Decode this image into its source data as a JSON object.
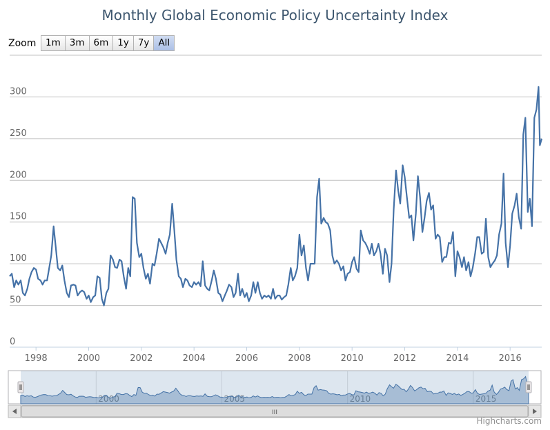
{
  "chart_data": {
    "type": "line",
    "title": "Monthly Global Economic Policy Uncertainty Index",
    "ylim": [
      0,
      350
    ],
    "yticks": [
      0,
      50,
      100,
      150,
      200,
      250,
      300
    ],
    "xlim": [
      1997.0,
      2017.2
    ],
    "xticks": [
      1998,
      2000,
      2002,
      2004,
      2006,
      2008,
      2010,
      2012,
      2014,
      2016
    ],
    "navigator_ticks": [
      2000,
      2005,
      2010,
      2015
    ],
    "grid": true,
    "legend": "none",
    "line_color": "#4572a7",
    "series": [
      {
        "points": [
          [
            1997.0,
            85
          ],
          [
            1997.08,
            88
          ],
          [
            1997.17,
            72
          ],
          [
            1997.25,
            80
          ],
          [
            1997.33,
            75
          ],
          [
            1997.42,
            80
          ],
          [
            1997.5,
            65
          ],
          [
            1997.58,
            62
          ],
          [
            1997.67,
            70
          ],
          [
            1997.75,
            82
          ],
          [
            1997.83,
            90
          ],
          [
            1997.92,
            95
          ],
          [
            1998.0,
            93
          ],
          [
            1998.08,
            82
          ],
          [
            1998.17,
            80
          ],
          [
            1998.25,
            75
          ],
          [
            1998.33,
            80
          ],
          [
            1998.42,
            80
          ],
          [
            1998.5,
            95
          ],
          [
            1998.58,
            110
          ],
          [
            1998.67,
            145
          ],
          [
            1998.75,
            120
          ],
          [
            1998.83,
            95
          ],
          [
            1998.92,
            92
          ],
          [
            1999.0,
            98
          ],
          [
            1999.08,
            80
          ],
          [
            1999.17,
            65
          ],
          [
            1999.25,
            60
          ],
          [
            1999.33,
            74
          ],
          [
            1999.42,
            75
          ],
          [
            1999.5,
            74
          ],
          [
            1999.58,
            62
          ],
          [
            1999.67,
            66
          ],
          [
            1999.75,
            68
          ],
          [
            1999.83,
            66
          ],
          [
            1999.92,
            58
          ],
          [
            2000.0,
            62
          ],
          [
            2000.08,
            54
          ],
          [
            2000.17,
            60
          ],
          [
            2000.25,
            62
          ],
          [
            2000.33,
            85
          ],
          [
            2000.42,
            83
          ],
          [
            2000.5,
            58
          ],
          [
            2000.58,
            50
          ],
          [
            2000.67,
            65
          ],
          [
            2000.75,
            70
          ],
          [
            2000.83,
            110
          ],
          [
            2000.92,
            105
          ],
          [
            2001.0,
            96
          ],
          [
            2001.08,
            95
          ],
          [
            2001.17,
            105
          ],
          [
            2001.25,
            103
          ],
          [
            2001.33,
            85
          ],
          [
            2001.42,
            70
          ],
          [
            2001.5,
            95
          ],
          [
            2001.58,
            85
          ],
          [
            2001.67,
            180
          ],
          [
            2001.75,
            178
          ],
          [
            2001.83,
            125
          ],
          [
            2001.92,
            108
          ],
          [
            2002.0,
            112
          ],
          [
            2002.08,
            95
          ],
          [
            2002.17,
            82
          ],
          [
            2002.25,
            88
          ],
          [
            2002.33,
            76
          ],
          [
            2002.42,
            100
          ],
          [
            2002.5,
            98
          ],
          [
            2002.58,
            112
          ],
          [
            2002.67,
            130
          ],
          [
            2002.75,
            125
          ],
          [
            2002.83,
            120
          ],
          [
            2002.92,
            112
          ],
          [
            2003.0,
            125
          ],
          [
            2003.08,
            135
          ],
          [
            2003.17,
            172
          ],
          [
            2003.25,
            140
          ],
          [
            2003.33,
            105
          ],
          [
            2003.42,
            85
          ],
          [
            2003.5,
            82
          ],
          [
            2003.58,
            72
          ],
          [
            2003.67,
            82
          ],
          [
            2003.75,
            80
          ],
          [
            2003.83,
            74
          ],
          [
            2003.92,
            72
          ],
          [
            2004.0,
            78
          ],
          [
            2004.08,
            75
          ],
          [
            2004.17,
            78
          ],
          [
            2004.25,
            73
          ],
          [
            2004.33,
            103
          ],
          [
            2004.42,
            74
          ],
          [
            2004.5,
            70
          ],
          [
            2004.58,
            68
          ],
          [
            2004.67,
            80
          ],
          [
            2004.75,
            92
          ],
          [
            2004.83,
            82
          ],
          [
            2004.92,
            65
          ],
          [
            2005.0,
            63
          ],
          [
            2005.08,
            55
          ],
          [
            2005.17,
            62
          ],
          [
            2005.25,
            68
          ],
          [
            2005.33,
            75
          ],
          [
            2005.42,
            72
          ],
          [
            2005.5,
            60
          ],
          [
            2005.58,
            65
          ],
          [
            2005.67,
            88
          ],
          [
            2005.75,
            62
          ],
          [
            2005.83,
            70
          ],
          [
            2005.92,
            60
          ],
          [
            2006.0,
            65
          ],
          [
            2006.08,
            55
          ],
          [
            2006.17,
            62
          ],
          [
            2006.25,
            78
          ],
          [
            2006.33,
            65
          ],
          [
            2006.42,
            78
          ],
          [
            2006.5,
            65
          ],
          [
            2006.58,
            58
          ],
          [
            2006.67,
            62
          ],
          [
            2006.75,
            60
          ],
          [
            2006.83,
            62
          ],
          [
            2006.92,
            58
          ],
          [
            2007.0,
            70
          ],
          [
            2007.08,
            58
          ],
          [
            2007.17,
            62
          ],
          [
            2007.25,
            62
          ],
          [
            2007.33,
            57
          ],
          [
            2007.42,
            60
          ],
          [
            2007.5,
            62
          ],
          [
            2007.58,
            75
          ],
          [
            2007.67,
            95
          ],
          [
            2007.75,
            80
          ],
          [
            2007.83,
            85
          ],
          [
            2007.92,
            95
          ],
          [
            2008.0,
            135
          ],
          [
            2008.08,
            110
          ],
          [
            2008.17,
            122
          ],
          [
            2008.25,
            95
          ],
          [
            2008.33,
            80
          ],
          [
            2008.42,
            100
          ],
          [
            2008.5,
            100
          ],
          [
            2008.58,
            100
          ],
          [
            2008.67,
            180
          ],
          [
            2008.75,
            202
          ],
          [
            2008.83,
            148
          ],
          [
            2008.92,
            155
          ],
          [
            2009.0,
            150
          ],
          [
            2009.08,
            148
          ],
          [
            2009.17,
            140
          ],
          [
            2009.25,
            110
          ],
          [
            2009.33,
            100
          ],
          [
            2009.42,
            104
          ],
          [
            2009.5,
            100
          ],
          [
            2009.58,
            92
          ],
          [
            2009.67,
            97
          ],
          [
            2009.75,
            80
          ],
          [
            2009.83,
            88
          ],
          [
            2009.92,
            90
          ],
          [
            2010.0,
            102
          ],
          [
            2010.08,
            108
          ],
          [
            2010.17,
            94
          ],
          [
            2010.25,
            90
          ],
          [
            2010.33,
            140
          ],
          [
            2010.42,
            128
          ],
          [
            2010.5,
            125
          ],
          [
            2010.58,
            120
          ],
          [
            2010.67,
            112
          ],
          [
            2010.75,
            124
          ],
          [
            2010.83,
            110
          ],
          [
            2010.92,
            115
          ],
          [
            2011.0,
            124
          ],
          [
            2011.08,
            112
          ],
          [
            2011.17,
            88
          ],
          [
            2011.25,
            118
          ],
          [
            2011.33,
            110
          ],
          [
            2011.42,
            78
          ],
          [
            2011.5,
            100
          ],
          [
            2011.58,
            165
          ],
          [
            2011.67,
            212
          ],
          [
            2011.75,
            188
          ],
          [
            2011.83,
            172
          ],
          [
            2011.92,
            218
          ],
          [
            2012.0,
            204
          ],
          [
            2012.08,
            180
          ],
          [
            2012.17,
            155
          ],
          [
            2012.25,
            158
          ],
          [
            2012.33,
            128
          ],
          [
            2012.42,
            160
          ],
          [
            2012.5,
            205
          ],
          [
            2012.58,
            180
          ],
          [
            2012.67,
            138
          ],
          [
            2012.75,
            155
          ],
          [
            2012.83,
            175
          ],
          [
            2012.92,
            185
          ],
          [
            2013.0,
            165
          ],
          [
            2013.08,
            170
          ],
          [
            2013.17,
            130
          ],
          [
            2013.25,
            135
          ],
          [
            2013.33,
            132
          ],
          [
            2013.42,
            102
          ],
          [
            2013.5,
            108
          ],
          [
            2013.58,
            108
          ],
          [
            2013.67,
            125
          ],
          [
            2013.75,
            124
          ],
          [
            2013.83,
            138
          ],
          [
            2013.92,
            85
          ],
          [
            2014.0,
            115
          ],
          [
            2014.08,
            108
          ],
          [
            2014.17,
            96
          ],
          [
            2014.25,
            108
          ],
          [
            2014.33,
            92
          ],
          [
            2014.42,
            102
          ],
          [
            2014.5,
            85
          ],
          [
            2014.58,
            95
          ],
          [
            2014.67,
            112
          ],
          [
            2014.75,
            132
          ],
          [
            2014.83,
            132
          ],
          [
            2014.92,
            112
          ],
          [
            2015.0,
            114
          ],
          [
            2015.08,
            154
          ],
          [
            2015.17,
            108
          ],
          [
            2015.25,
            96
          ],
          [
            2015.33,
            100
          ],
          [
            2015.42,
            104
          ],
          [
            2015.5,
            110
          ],
          [
            2015.58,
            135
          ],
          [
            2015.67,
            148
          ],
          [
            2015.75,
            208
          ],
          [
            2015.83,
            125
          ],
          [
            2015.92,
            96
          ],
          [
            2016.0,
            122
          ],
          [
            2016.08,
            160
          ],
          [
            2016.17,
            170
          ],
          [
            2016.25,
            184
          ],
          [
            2016.33,
            156
          ],
          [
            2016.42,
            142
          ],
          [
            2016.5,
            255
          ],
          [
            2016.58,
            275
          ],
          [
            2016.67,
            162
          ],
          [
            2016.75,
            178
          ],
          [
            2016.83,
            145
          ],
          [
            2016.92,
            275
          ],
          [
            2017.0,
            285
          ],
          [
            2017.08,
            312
          ],
          [
            2017.13,
            242
          ],
          [
            2017.2,
            250
          ]
        ]
      }
    ]
  },
  "zoom": {
    "label": "Zoom",
    "buttons": [
      "1m",
      "3m",
      "6m",
      "1y",
      "7y",
      "All"
    ],
    "active": "All"
  },
  "navigator": {
    "scrollbar_grip": "III"
  },
  "credits": "Highcharts.com"
}
